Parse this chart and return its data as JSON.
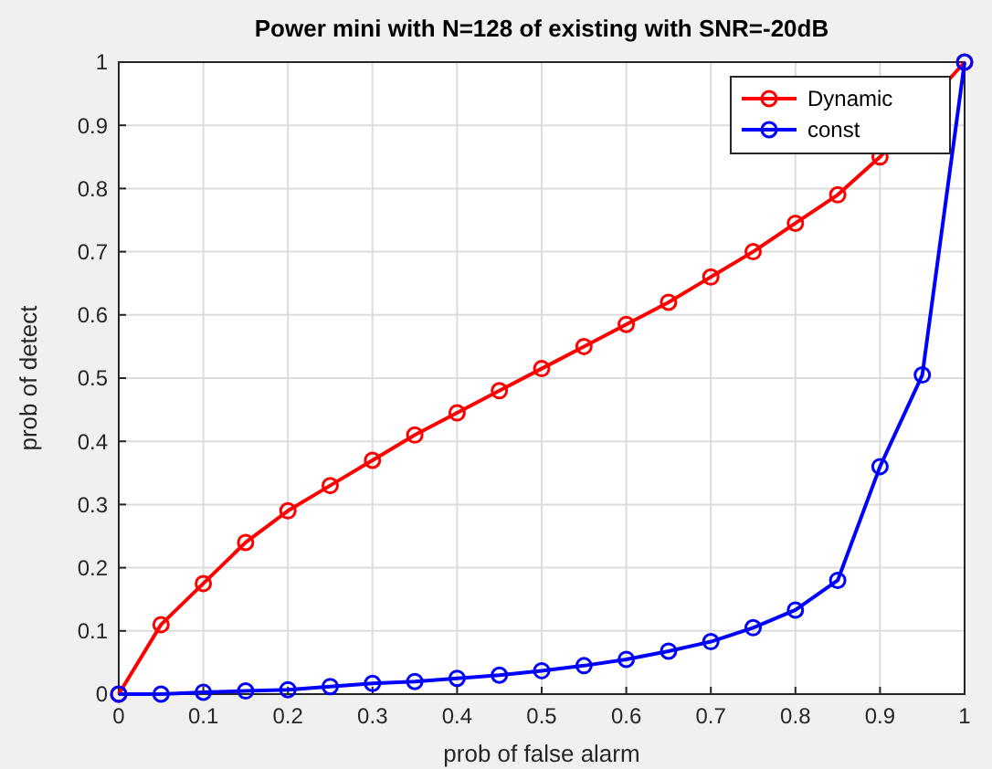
{
  "chart_data": {
    "type": "line",
    "title": "Power mini with N=128 of existing with SNR=-20dB",
    "xlabel": "prob of false alarm",
    "ylabel": "prob of detect",
    "x": [
      0,
      0.05,
      0.1,
      0.15,
      0.2,
      0.25,
      0.3,
      0.35,
      0.4,
      0.45,
      0.5,
      0.55,
      0.6,
      0.65,
      0.7,
      0.75,
      0.8,
      0.85,
      0.9,
      0.95,
      1
    ],
    "series": [
      {
        "name": "Dynamic",
        "color": "#ff0000",
        "values": [
          0,
          0.11,
          0.175,
          0.24,
          0.29,
          0.33,
          0.37,
          0.41,
          0.445,
          0.48,
          0.515,
          0.55,
          0.585,
          0.62,
          0.66,
          0.7,
          0.745,
          0.79,
          0.85,
          null,
          1
        ]
      },
      {
        "name": "const",
        "color": "#0000ff",
        "values": [
          0,
          0,
          0.003,
          0.005,
          0.007,
          0.012,
          0.017,
          0.02,
          0.025,
          0.03,
          0.037,
          0.045,
          0.055,
          0.068,
          0.083,
          0.105,
          0.133,
          0.18,
          0.36,
          0.505,
          1
        ]
      }
    ],
    "xlim": [
      0,
      1
    ],
    "ylim": [
      0,
      1
    ],
    "xticks": [
      0,
      0.1,
      0.2,
      0.3,
      0.4,
      0.5,
      0.6,
      0.7,
      0.8,
      0.9,
      1
    ],
    "yticks": [
      0,
      0.1,
      0.2,
      0.3,
      0.4,
      0.5,
      0.6,
      0.7,
      0.8,
      0.9,
      1
    ],
    "grid": true,
    "legend": "top right",
    "marker": "circle",
    "line_style": "solid"
  }
}
